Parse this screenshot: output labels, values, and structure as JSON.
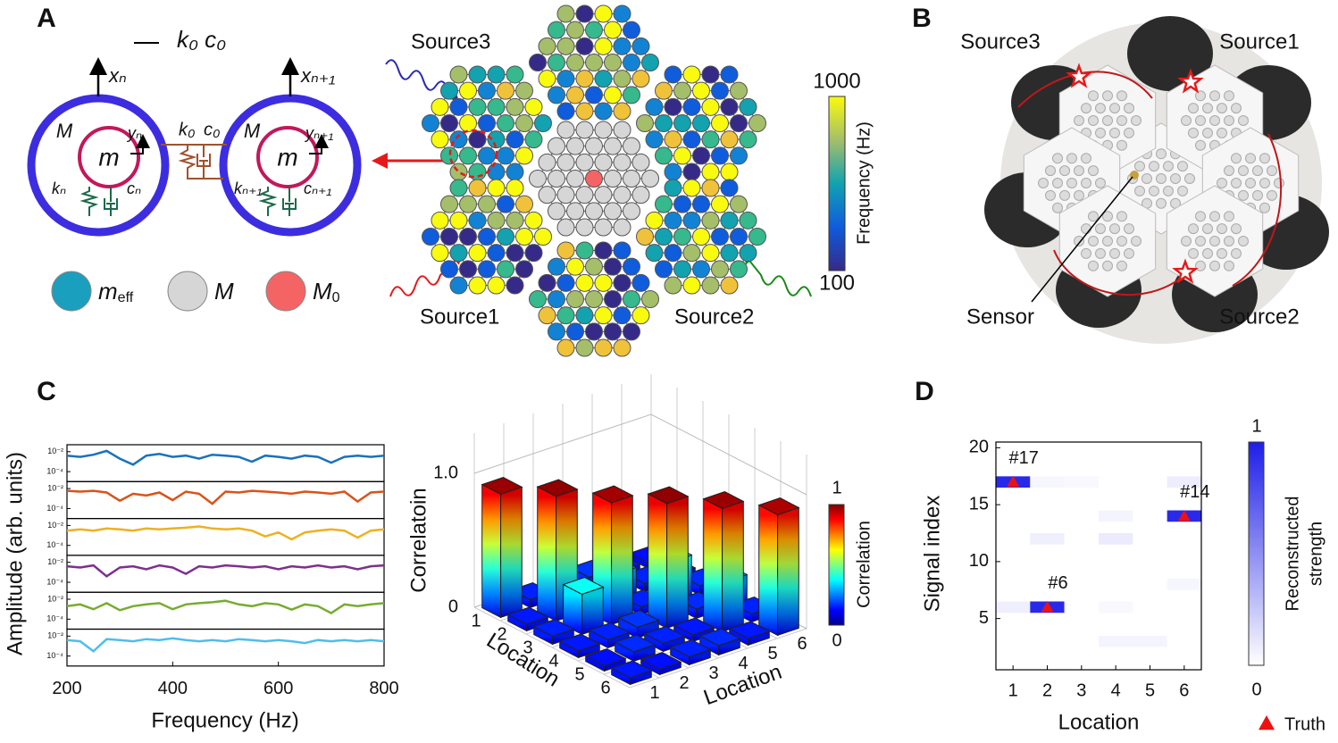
{
  "panel_a": {
    "label": "A",
    "coupling_legend": "k₀ c₀",
    "x_n": "xₙ",
    "x_n1": "xₙ₊₁",
    "M": "M",
    "m": "m",
    "y_n": "yₙ",
    "y_n1": "yₙ₊₁",
    "k_n": "kₙ",
    "c_n": "cₙ",
    "k_n1": "kₙ₊₁",
    "c_n1": "cₙ₊₁",
    "k0": "k₀",
    "c0": "c₀",
    "legend": [
      {
        "symbol": "m",
        "sub": "eff",
        "color": "#1a9fbf"
      },
      {
        "symbol": "M",
        "color": "#d6d6d6"
      },
      {
        "symbol": "M",
        "sub": "0",
        "color": "#f46464"
      }
    ],
    "sources": [
      "Source3",
      "Source1",
      "Source2"
    ],
    "colorbar": {
      "max": 1000,
      "min": 100,
      "label": "Frequency (Hz)"
    }
  },
  "panel_b": {
    "label": "B",
    "sources": [
      "Source3",
      "Source1",
      "Source2"
    ],
    "sensor": "Sensor"
  },
  "panel_c": {
    "label": "C",
    "spectra": {
      "type": "line",
      "ylabel": "Amplitude (arb. units)",
      "xlabel": "Frequency (Hz)",
      "x": [
        200,
        225,
        250,
        275,
        300,
        325,
        350,
        375,
        400,
        425,
        450,
        475,
        500,
        525,
        550,
        575,
        600,
        625,
        650,
        675,
        700,
        725,
        750,
        775,
        800
      ],
      "xlim": [
        200,
        800
      ],
      "xticks": [
        200,
        400,
        600,
        800
      ],
      "log_y": true,
      "ylim": [
        1e-05,
        0.05
      ],
      "yticks": [
        {
          "value": 0.01,
          "label": "10⁻²"
        },
        {
          "value": 0.0001,
          "label": "10⁻⁴"
        }
      ],
      "series": [
        {
          "color": "#1a72bb",
          "values": [
            0.004,
            0.003,
            0.005,
            0.012,
            0.002,
            0.0005,
            0.004,
            0.006,
            0.003,
            0.004,
            0.002,
            0.005,
            0.004,
            0.003,
            0.001,
            0.004,
            0.003,
            0.002,
            0.004,
            0.003,
            0.0008,
            0.003,
            0.004,
            0.003,
            0.004
          ]
        },
        {
          "color": "#d95319",
          "values": [
            0.006,
            0.005,
            0.006,
            0.004,
            0.0006,
            0.003,
            0.002,
            0.004,
            0.0007,
            0.005,
            0.003,
            0.0003,
            0.005,
            0.004,
            0.006,
            0.005,
            0.004,
            0.003,
            0.005,
            0.004,
            0.003,
            0.005,
            0.0005,
            0.004,
            0.005
          ]
        },
        {
          "color": "#edb120",
          "values": [
            0.003,
            0.004,
            0.003,
            0.005,
            0.004,
            0.003,
            0.005,
            0.004,
            0.005,
            0.006,
            0.008,
            0.005,
            0.004,
            0.005,
            0.003,
            0.0008,
            0.002,
            0.0004,
            0.002,
            0.003,
            0.004,
            0.003,
            0.0006,
            0.003,
            0.004
          ]
        },
        {
          "color": "#7e2f8e",
          "values": [
            0.004,
            0.003,
            0.005,
            0.0004,
            0.003,
            0.004,
            0.002,
            0.005,
            0.003,
            0.0007,
            0.004,
            0.003,
            0.005,
            0.004,
            0.003,
            0.004,
            0.002,
            0.004,
            0.003,
            0.005,
            0.003,
            0.004,
            0.002,
            0.004,
            0.005
          ]
        },
        {
          "color": "#77ac30",
          "values": [
            0.002,
            0.003,
            0.001,
            0.004,
            0.0008,
            0.002,
            0.003,
            0.004,
            0.001,
            0.003,
            0.004,
            0.005,
            0.007,
            0.003,
            0.002,
            0.004,
            0.003,
            0.0009,
            0.003,
            0.002,
            0.0004,
            0.003,
            0.002,
            0.003,
            0.004
          ]
        },
        {
          "color": "#4dbeee",
          "values": [
            0.004,
            0.003,
            0.0003,
            0.005,
            0.004,
            0.003,
            0.005,
            0.004,
            0.006,
            0.004,
            0.003,
            0.004,
            0.003,
            0.005,
            0.004,
            0.003,
            0.004,
            0.003,
            0.002,
            0.004,
            0.003,
            0.004,
            0.003,
            0.004,
            0.003
          ]
        }
      ]
    },
    "correlation": {
      "type": "bar3d",
      "zlabel": "Correlatoin",
      "xlabel": "Location",
      "ylabel": "Location",
      "categories": [
        "1",
        "2",
        "3",
        "4",
        "5",
        "6"
      ],
      "zlim": [
        0,
        1
      ],
      "zticks": [
        0,
        {
          "value": 1,
          "label": "1.0"
        }
      ],
      "values": [
        [
          0.92,
          0.06,
          0.05,
          0.08,
          0.05,
          0.04
        ],
        [
          0.05,
          0.93,
          0.07,
          0.2,
          0.06,
          0.05
        ],
        [
          0.06,
          0.3,
          0.91,
          0.06,
          0.32,
          0.07
        ],
        [
          0.05,
          0.06,
          0.08,
          0.93,
          0.07,
          0.2
        ],
        [
          0.04,
          0.07,
          0.06,
          0.05,
          0.92,
          0.06
        ],
        [
          0.05,
          0.04,
          0.06,
          0.07,
          0.05,
          0.9
        ]
      ],
      "colorbar": {
        "ticks": [
          0,
          1
        ],
        "label": "Correlation"
      }
    }
  },
  "panel_d": {
    "label": "D",
    "type": "heatmap",
    "xlabel": "Location",
    "ylabel": "Signal index",
    "categories": [
      "1",
      "2",
      "3",
      "4",
      "5",
      "6"
    ],
    "xlim": [
      0.5,
      6.5
    ],
    "ylim": [
      0.5,
      20.5
    ],
    "yticks": [
      5,
      10,
      15,
      20
    ],
    "values": [
      [
        0,
        0,
        0,
        0,
        0,
        0
      ],
      [
        0,
        0,
        0,
        0,
        0,
        0
      ],
      [
        0,
        0,
        0,
        0.05,
        0.05,
        0
      ],
      [
        0,
        0,
        0,
        0,
        0,
        0
      ],
      [
        0,
        0,
        0,
        0,
        0,
        0
      ],
      [
        0.07,
        0.95,
        0,
        0.03,
        0,
        0
      ],
      [
        0,
        0,
        0,
        0,
        0,
        0
      ],
      [
        0,
        0,
        0,
        0,
        0,
        0.04
      ],
      [
        0,
        0,
        0,
        0,
        0,
        0
      ],
      [
        0,
        0,
        0,
        0,
        0,
        0
      ],
      [
        0,
        0,
        0,
        0,
        0,
        0
      ],
      [
        0,
        0.07,
        0,
        0.09,
        0,
        0
      ],
      [
        0,
        0,
        0,
        0,
        0,
        0
      ],
      [
        0,
        0,
        0,
        0.05,
        0,
        0.95
      ],
      [
        0,
        0,
        0,
        0,
        0,
        0
      ],
      [
        0,
        0,
        0,
        0,
        0,
        0
      ],
      [
        0.95,
        0.04,
        0.03,
        0,
        0,
        0.08
      ],
      [
        0,
        0,
        0,
        0,
        0,
        0
      ],
      [
        0,
        0,
        0,
        0,
        0,
        0
      ],
      [
        0,
        0,
        0,
        0,
        0,
        0
      ]
    ],
    "colors": [
      "#ffffff",
      "#1e1ee8"
    ],
    "colorbar": {
      "ticks": [
        0,
        1
      ],
      "label": [
        "Reconstructed",
        "strength"
      ]
    },
    "truth": {
      "label": "Truth",
      "color": "#ee1111",
      "points": [
        {
          "x": 1,
          "y": 17,
          "label": "#17"
        },
        {
          "x": 2,
          "y": 6,
          "label": "#6"
        },
        {
          "x": 6,
          "y": 14,
          "label": "#14"
        }
      ]
    }
  }
}
